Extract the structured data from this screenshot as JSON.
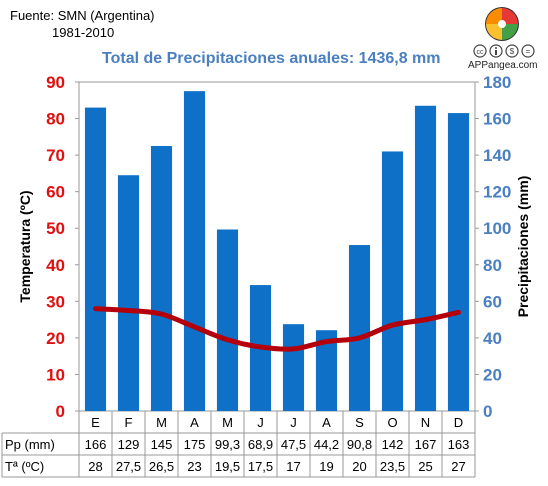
{
  "header": {
    "source": "Fuente: SMN (Argentina)",
    "period": "1981-2010",
    "brand": "APPangea.com"
  },
  "colors": {
    "bar": "#0f70c8",
    "line": "#b3000b",
    "temp_axis": "#e01010",
    "precip_axis": "#4a7fc0"
  },
  "chart_data": {
    "type": "bar",
    "title": "Total de Precipitaciones anuales: 1436,8 mm",
    "categories": [
      "E",
      "F",
      "M",
      "A",
      "M",
      "J",
      "J",
      "A",
      "S",
      "O",
      "N",
      "D"
    ],
    "series": [
      {
        "name": "Pp (mm)",
        "type": "bar",
        "axis": "right",
        "values": [
          166,
          129,
          145,
          175,
          99.3,
          68.9,
          47.5,
          44.2,
          90.8,
          142,
          167,
          163
        ],
        "labels": [
          "166",
          "129",
          "145",
          "175",
          "99,3",
          "68,9",
          "47,5",
          "44,2",
          "90,8",
          "142",
          "167",
          "163"
        ]
      },
      {
        "name": "Tª (ºC)",
        "type": "line",
        "axis": "left",
        "values": [
          28,
          27.5,
          26.5,
          23,
          19.5,
          17.5,
          17,
          19,
          20,
          23.5,
          25,
          27
        ],
        "labels": [
          "28",
          "27,5",
          "26,5",
          "23",
          "19,5",
          "17,5",
          "17",
          "19",
          "20",
          "23,5",
          "25",
          "27"
        ]
      }
    ],
    "ylabel_left": "Temperatura (ºC)",
    "ylabel_right": "Precipitaciones (mm)",
    "ylim_left": [
      0,
      90
    ],
    "ylim_right": [
      0,
      180
    ],
    "yticks_left": [
      "0",
      "10",
      "20",
      "30",
      "40",
      "50",
      "60",
      "70",
      "80",
      "90"
    ],
    "yticks_right": [
      "0",
      "20",
      "40",
      "60",
      "80",
      "100",
      "120",
      "140",
      "160",
      "180"
    ],
    "grid": false,
    "legend": "table-below"
  }
}
